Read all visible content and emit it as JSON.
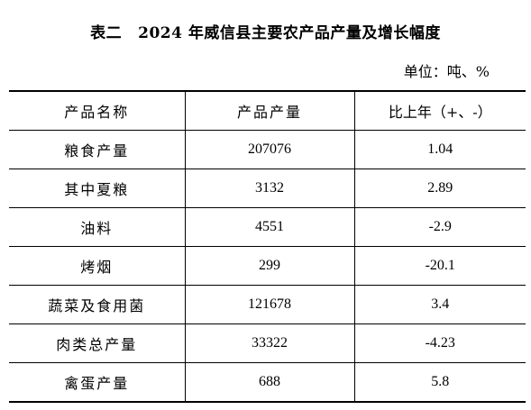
{
  "title": {
    "label": "表二",
    "text": "2024 年威信县主要农产品产量及增长幅度"
  },
  "unit": "单位：吨、%",
  "table": {
    "headers": [
      "产品名称",
      "产品产量",
      "比上年（+、-）"
    ],
    "rows": [
      {
        "name": "粮食产量",
        "output": "207076",
        "change": "1.04"
      },
      {
        "name": "其中夏粮",
        "output": "3132",
        "change": "2.89"
      },
      {
        "name": "油料",
        "output": "4551",
        "change": "-2.9"
      },
      {
        "name": "烤烟",
        "output": "299",
        "change": "-20.1"
      },
      {
        "name": "蔬菜及食用菌",
        "output": "121678",
        "change": "3.4"
      },
      {
        "name": "肉类总产量",
        "output": "33322",
        "change": "-4.23"
      },
      {
        "name": "禽蛋产量",
        "output": "688",
        "change": "5.8"
      }
    ]
  }
}
